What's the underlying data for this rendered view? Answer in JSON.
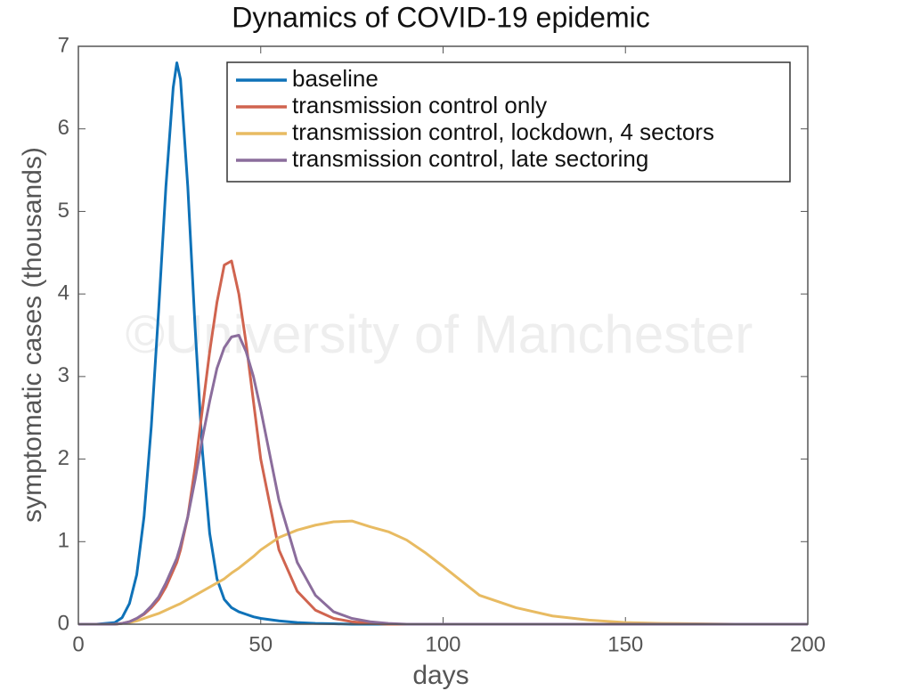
{
  "chart_data": {
    "type": "line",
    "title": "Dynamics of COVID-19 epidemic",
    "xlabel": "days",
    "ylabel": "symptomatic cases (thousands)",
    "watermark": "©University of Manchester",
    "legend": "top-right",
    "xlim": [
      0,
      200
    ],
    "xticks": [
      0,
      50,
      100,
      150,
      200
    ],
    "ylim": [
      0,
      7
    ],
    "yticks": [
      0,
      1,
      2,
      3,
      4,
      5,
      6,
      7
    ],
    "x": [
      0,
      5,
      10,
      12,
      14,
      16,
      18,
      20,
      22,
      24,
      26,
      27,
      28,
      30,
      32,
      34,
      36,
      38,
      40,
      42,
      44,
      46,
      48,
      50,
      55,
      60,
      65,
      70,
      75,
      80,
      85,
      90,
      95,
      100,
      110,
      120,
      130,
      140,
      150,
      160,
      180,
      200
    ],
    "series": [
      {
        "name": "baseline",
        "color": "#0f72b8",
        "values": [
          0,
          0,
          0.02,
          0.08,
          0.25,
          0.6,
          1.3,
          2.4,
          3.8,
          5.3,
          6.5,
          6.8,
          6.6,
          5.3,
          3.6,
          2.1,
          1.1,
          0.55,
          0.3,
          0.2,
          0.15,
          0.12,
          0.09,
          0.07,
          0.04,
          0.02,
          0.01,
          0.005,
          0,
          0,
          0,
          0,
          0,
          0,
          0,
          0,
          0,
          0,
          0,
          0,
          0,
          0
        ]
      },
      {
        "name": "transmission control only",
        "color": "#d0644f",
        "values": [
          0,
          0,
          0,
          0.01,
          0.03,
          0.07,
          0.12,
          0.2,
          0.3,
          0.45,
          0.65,
          0.75,
          0.9,
          1.3,
          1.9,
          2.6,
          3.3,
          3.9,
          4.35,
          4.4,
          4.0,
          3.4,
          2.7,
          2.0,
          0.9,
          0.4,
          0.17,
          0.07,
          0.03,
          0.01,
          0,
          0,
          0,
          0,
          0,
          0,
          0,
          0,
          0,
          0,
          0,
          0
        ]
      },
      {
        "name": "transmission control, lockdown, 4 sectors",
        "color": "#e8bb62",
        "values": [
          0,
          0,
          0,
          0.01,
          0.02,
          0.04,
          0.07,
          0.1,
          0.13,
          0.17,
          0.21,
          0.23,
          0.25,
          0.3,
          0.35,
          0.4,
          0.45,
          0.5,
          0.55,
          0.62,
          0.68,
          0.75,
          0.82,
          0.9,
          1.05,
          1.14,
          1.2,
          1.24,
          1.25,
          1.18,
          1.12,
          1.02,
          0.87,
          0.7,
          0.35,
          0.2,
          0.1,
          0.05,
          0.02,
          0.01,
          0,
          0
        ]
      },
      {
        "name": "transmission control, late sectoring",
        "color": "#8b6d9c",
        "values": [
          0,
          0,
          0,
          0.01,
          0.03,
          0.07,
          0.13,
          0.22,
          0.33,
          0.5,
          0.7,
          0.8,
          0.95,
          1.3,
          1.75,
          2.25,
          2.7,
          3.1,
          3.35,
          3.48,
          3.5,
          3.3,
          3.0,
          2.6,
          1.5,
          0.75,
          0.35,
          0.15,
          0.07,
          0.03,
          0.01,
          0,
          0,
          0,
          0,
          0,
          0,
          0,
          0,
          0,
          0,
          0
        ]
      }
    ]
  }
}
